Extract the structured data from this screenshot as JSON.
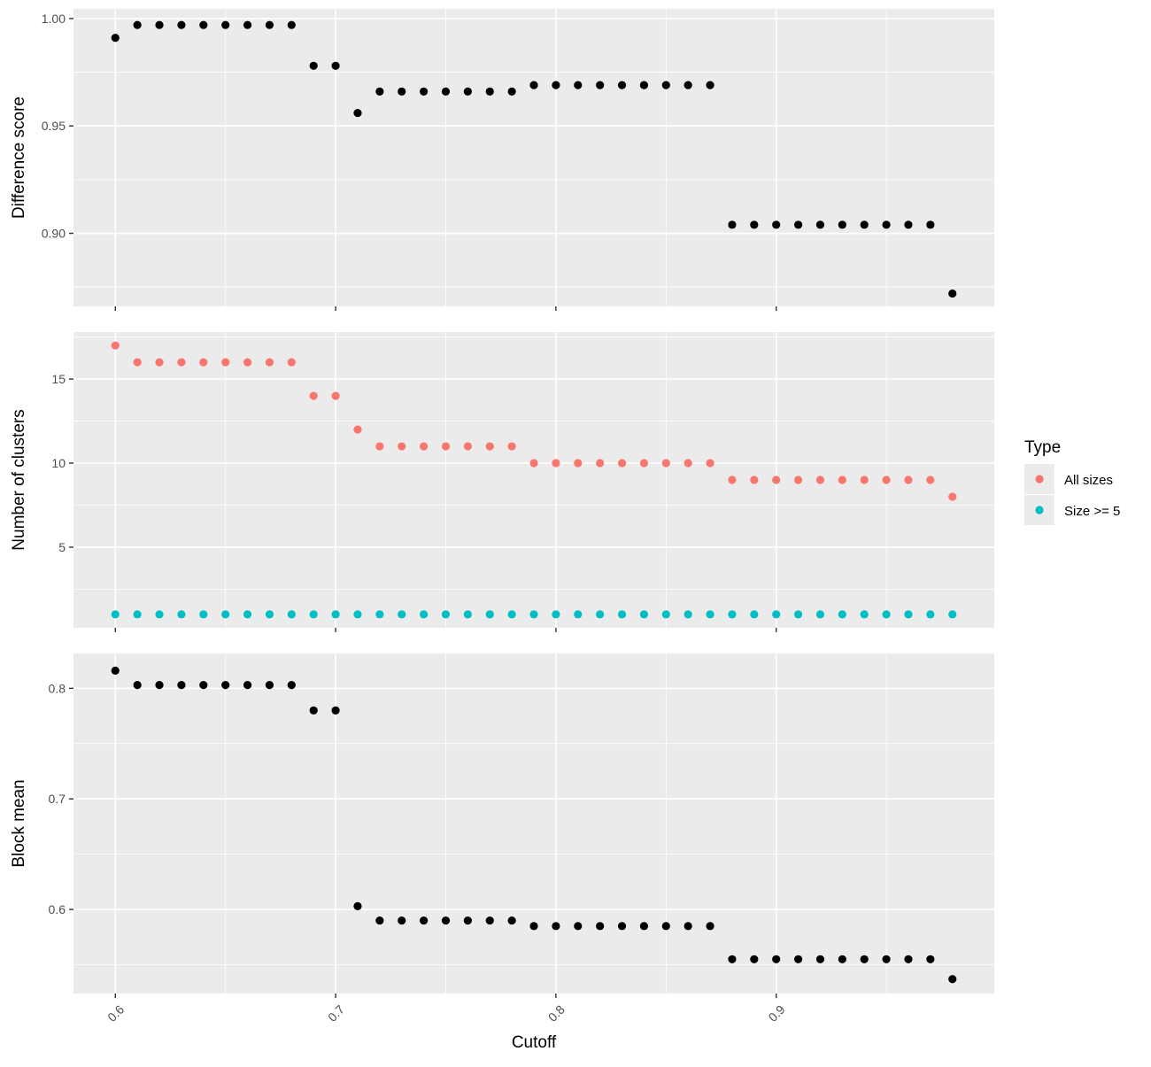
{
  "chart_data": [
    {
      "type": "scatter",
      "ylabel": "Difference score",
      "yticks": [
        0.9,
        0.95,
        1.0
      ],
      "ytick_labels": [
        "0.90",
        "0.95",
        "1.00"
      ],
      "ylim": [
        0.866,
        1.0045
      ],
      "series": [
        {
          "color": "#000000",
          "x": [
            0.6,
            0.61,
            0.62,
            0.63,
            0.64,
            0.65,
            0.66,
            0.67,
            0.68,
            0.69,
            0.7,
            0.71,
            0.72,
            0.73,
            0.74,
            0.75,
            0.76,
            0.77,
            0.78,
            0.79,
            0.8,
            0.81,
            0.82,
            0.83,
            0.84,
            0.85,
            0.86,
            0.87,
            0.88,
            0.89,
            0.9,
            0.91,
            0.92,
            0.93,
            0.94,
            0.95,
            0.96,
            0.97,
            0.98
          ],
          "y": [
            0.991,
            0.997,
            0.997,
            0.997,
            0.997,
            0.997,
            0.997,
            0.997,
            0.997,
            0.978,
            0.978,
            0.956,
            0.966,
            0.966,
            0.966,
            0.966,
            0.966,
            0.966,
            0.966,
            0.969,
            0.969,
            0.969,
            0.969,
            0.969,
            0.969,
            0.969,
            0.969,
            0.969,
            0.904,
            0.904,
            0.904,
            0.904,
            0.904,
            0.904,
            0.904,
            0.904,
            0.904,
            0.904,
            0.872
          ]
        }
      ]
    },
    {
      "type": "scatter",
      "ylabel": "Number of clusters",
      "yticks": [
        5,
        10,
        15
      ],
      "ytick_labels": [
        "5",
        "10",
        "15"
      ],
      "ylim": [
        0.2,
        17.8
      ],
      "legend": {
        "title": "Type",
        "placement": "right"
      },
      "series": [
        {
          "name": "All sizes",
          "color": "#f8766d",
          "x": [
            0.6,
            0.61,
            0.62,
            0.63,
            0.64,
            0.65,
            0.66,
            0.67,
            0.68,
            0.69,
            0.7,
            0.71,
            0.72,
            0.73,
            0.74,
            0.75,
            0.76,
            0.77,
            0.78,
            0.79,
            0.8,
            0.81,
            0.82,
            0.83,
            0.84,
            0.85,
            0.86,
            0.87,
            0.88,
            0.89,
            0.9,
            0.91,
            0.92,
            0.93,
            0.94,
            0.95,
            0.96,
            0.97,
            0.98
          ],
          "y": [
            17,
            16,
            16,
            16,
            16,
            16,
            16,
            16,
            16,
            14,
            14,
            12,
            11,
            11,
            11,
            11,
            11,
            11,
            11,
            10,
            10,
            10,
            10,
            10,
            10,
            10,
            10,
            10,
            9,
            9,
            9,
            9,
            9,
            9,
            9,
            9,
            9,
            9,
            8
          ]
        },
        {
          "name": "Size >= 5",
          "color": "#00bfc4",
          "x": [
            0.6,
            0.61,
            0.62,
            0.63,
            0.64,
            0.65,
            0.66,
            0.67,
            0.68,
            0.69,
            0.7,
            0.71,
            0.72,
            0.73,
            0.74,
            0.75,
            0.76,
            0.77,
            0.78,
            0.79,
            0.8,
            0.81,
            0.82,
            0.83,
            0.84,
            0.85,
            0.86,
            0.87,
            0.88,
            0.89,
            0.9,
            0.91,
            0.92,
            0.93,
            0.94,
            0.95,
            0.96,
            0.97,
            0.98
          ],
          "y": [
            1,
            1,
            1,
            1,
            1,
            1,
            1,
            1,
            1,
            1,
            1,
            1,
            1,
            1,
            1,
            1,
            1,
            1,
            1,
            1,
            1,
            1,
            1,
            1,
            1,
            1,
            1,
            1,
            1,
            1,
            1,
            1,
            1,
            1,
            1,
            1,
            1,
            1,
            1
          ]
        }
      ]
    },
    {
      "type": "scatter",
      "ylabel": "Block mean",
      "xlabel": "Cutoff",
      "yticks": [
        0.6,
        0.7,
        0.8
      ],
      "ytick_labels": [
        "0.6",
        "0.7",
        "0.8"
      ],
      "ylim": [
        0.524,
        0.8315
      ],
      "series": [
        {
          "color": "#000000",
          "x": [
            0.6,
            0.61,
            0.62,
            0.63,
            0.64,
            0.65,
            0.66,
            0.67,
            0.68,
            0.69,
            0.7,
            0.71,
            0.72,
            0.73,
            0.74,
            0.75,
            0.76,
            0.77,
            0.78,
            0.79,
            0.8,
            0.81,
            0.82,
            0.83,
            0.84,
            0.85,
            0.86,
            0.87,
            0.88,
            0.89,
            0.9,
            0.91,
            0.92,
            0.93,
            0.94,
            0.95,
            0.96,
            0.97,
            0.98
          ],
          "y": [
            0.816,
            0.803,
            0.803,
            0.803,
            0.803,
            0.803,
            0.803,
            0.803,
            0.803,
            0.78,
            0.78,
            0.603,
            0.59,
            0.59,
            0.59,
            0.59,
            0.59,
            0.59,
            0.59,
            0.585,
            0.585,
            0.585,
            0.585,
            0.585,
            0.585,
            0.585,
            0.585,
            0.585,
            0.555,
            0.555,
            0.555,
            0.555,
            0.555,
            0.555,
            0.555,
            0.555,
            0.555,
            0.555,
            0.537
          ]
        }
      ]
    }
  ],
  "xaxis": {
    "title": "Cutoff",
    "ticks": [
      0.6,
      0.7,
      0.8,
      0.9
    ],
    "tick_labels": [
      "0.6",
      "0.7",
      "0.8",
      "0.9"
    ],
    "xlim": [
      0.581,
      0.999
    ],
    "tick_label_rotation_deg": -45
  },
  "legend": {
    "title": "Type",
    "items": [
      {
        "label": "All sizes",
        "color": "#f8766d"
      },
      {
        "label": "Size >= 5",
        "color": "#00bfc4"
      }
    ]
  }
}
